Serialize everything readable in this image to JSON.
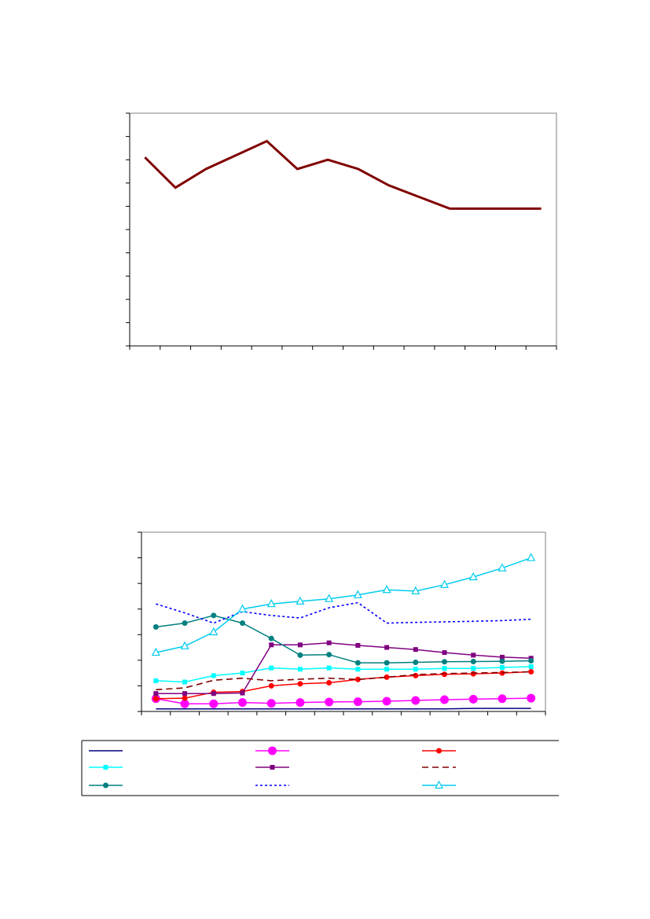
{
  "chart_data": [
    {
      "type": "line",
      "x": [
        1,
        2,
        3,
        4,
        5,
        6,
        7,
        8,
        9,
        10,
        11,
        12,
        13,
        14
      ],
      "ylim": [
        0,
        10
      ],
      "series": [
        {
          "color": "#800000",
          "values": [
            8.1,
            6.8,
            7.6,
            8.2,
            8.8,
            7.6,
            8.0,
            7.6,
            6.9,
            6.4,
            5.9,
            5.9,
            5.9,
            5.9
          ]
        }
      ],
      "grid": false,
      "legend": false
    },
    {
      "type": "line",
      "x": [
        1,
        2,
        3,
        4,
        5,
        6,
        7,
        8,
        9,
        10,
        11,
        12,
        13,
        14
      ],
      "ylim": [
        0,
        7
      ],
      "legend_position": "bottom",
      "series": [
        {
          "color": "#000080",
          "dash": "solid",
          "marker": "none",
          "values": [
            0.1,
            0.1,
            0.1,
            0.1,
            0.1,
            0.1,
            0.1,
            0.1,
            0.1,
            0.1,
            0.1,
            0.12,
            0.12,
            0.12
          ]
        },
        {
          "color": "#ff00ff",
          "dash": "solid",
          "marker": "circle-large",
          "values": [
            0.5,
            0.3,
            0.3,
            0.35,
            0.32,
            0.35,
            0.37,
            0.38,
            0.4,
            0.43,
            0.46,
            0.48,
            0.5,
            0.52
          ]
        },
        {
          "color": "#ff0000",
          "dash": "solid",
          "marker": "circle-small",
          "values": [
            0.5,
            0.52,
            0.75,
            0.78,
            1.0,
            1.08,
            1.12,
            1.25,
            1.34,
            1.4,
            1.45,
            1.47,
            1.5,
            1.55
          ]
        },
        {
          "color": "#00ffff",
          "dash": "solid",
          "marker": "square",
          "values": [
            1.2,
            1.15,
            1.4,
            1.5,
            1.7,
            1.65,
            1.7,
            1.65,
            1.65,
            1.65,
            1.68,
            1.68,
            1.72,
            1.75
          ]
        },
        {
          "color": "#800080",
          "dash": "solid",
          "marker": "square",
          "values": [
            0.7,
            0.7,
            0.7,
            0.72,
            2.6,
            2.6,
            2.68,
            2.58,
            2.5,
            2.42,
            2.3,
            2.2,
            2.12,
            2.08
          ]
        },
        {
          "color": "#800000",
          "dash": "dashed",
          "marker": "none",
          "values": [
            0.85,
            0.92,
            1.22,
            1.3,
            1.2,
            1.26,
            1.3,
            1.25,
            1.34,
            1.44,
            1.48,
            1.5,
            1.52,
            1.55
          ]
        },
        {
          "color": "#008080",
          "dash": "solid",
          "marker": "circle-small",
          "values": [
            3.3,
            3.45,
            3.75,
            3.45,
            2.85,
            2.2,
            2.22,
            1.9,
            1.9,
            1.92,
            1.94,
            1.95,
            1.96,
            1.98
          ]
        },
        {
          "color": "#0000ff",
          "dash": "dotted",
          "marker": "none",
          "values": [
            4.2,
            3.85,
            3.45,
            3.9,
            3.75,
            3.65,
            4.05,
            4.25,
            3.45,
            3.48,
            3.5,
            3.52,
            3.55,
            3.6
          ]
        },
        {
          "color": "#00ccee",
          "dash": "solid",
          "marker": "triangle-open",
          "values": [
            2.3,
            2.55,
            3.1,
            4.0,
            4.2,
            4.3,
            4.4,
            4.55,
            4.75,
            4.7,
            4.95,
            5.25,
            5.6,
            6.0
          ]
        }
      ],
      "grid": false
    }
  ]
}
